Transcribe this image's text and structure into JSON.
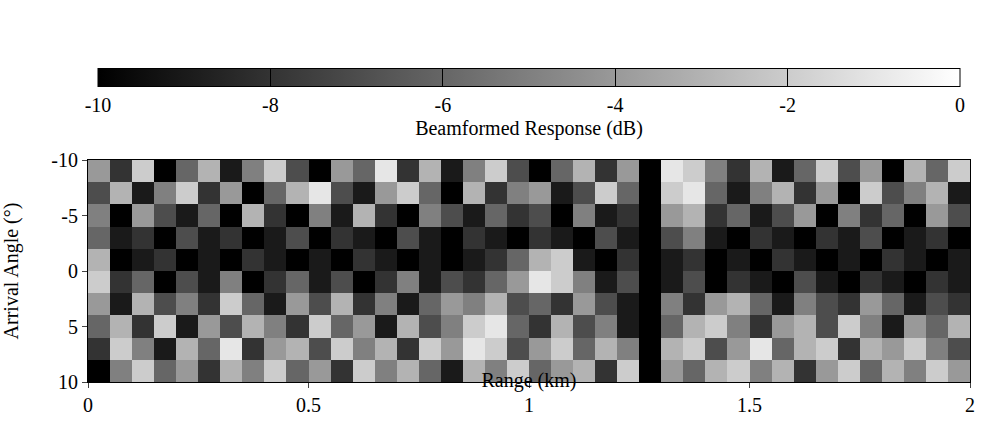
{
  "chart_data": {
    "type": "heatmap",
    "xlabel": "Range (km)",
    "ylabel": "Arrival Angle (°)",
    "xlim": [
      0,
      2
    ],
    "xticks": [
      0,
      0.5,
      1,
      1.5,
      2
    ],
    "ylim": [
      10,
      -10
    ],
    "yticks": [
      -10,
      -5,
      0,
      5,
      10
    ],
    "x": [
      0.025,
      0.075,
      0.125,
      0.175,
      0.225,
      0.275,
      0.325,
      0.375,
      0.425,
      0.475,
      0.525,
      0.575,
      0.625,
      0.675,
      0.725,
      0.775,
      0.825,
      0.875,
      0.925,
      0.975,
      1.025,
      1.075,
      1.125,
      1.175,
      1.225,
      1.275,
      1.325,
      1.375,
      1.425,
      1.475,
      1.525,
      1.575,
      1.625,
      1.675,
      1.725,
      1.775,
      1.825,
      1.875,
      1.925,
      1.975
    ],
    "y": [
      -9,
      -7,
      -5,
      -3,
      -1,
      1,
      3,
      5,
      7,
      9
    ],
    "z": [
      [
        -4,
        -8,
        -2,
        -10,
        -6,
        -3,
        -9,
        -5,
        -2,
        -7,
        -10,
        -4,
        -6,
        -1,
        -8,
        -3,
        -9,
        -5,
        -2,
        -7,
        -10,
        -6,
        -3,
        -8,
        -4,
        -10,
        -1,
        -2,
        -5,
        -8,
        -3,
        -9,
        -6,
        -2,
        -7,
        -4,
        -10,
        -3,
        -6,
        -2
      ],
      [
        -7,
        -3,
        -9,
        -5,
        -2,
        -8,
        -4,
        -10,
        -6,
        -3,
        -1,
        -7,
        -9,
        -4,
        -2,
        -6,
        -10,
        -3,
        -8,
        -5,
        -4,
        -9,
        -7,
        -2,
        -6,
        -10,
        -2,
        -1,
        -6,
        -9,
        -5,
        -3,
        -8,
        -4,
        -10,
        -2,
        -7,
        -5,
        -3,
        -9
      ],
      [
        -5,
        -10,
        -4,
        -7,
        -9,
        -6,
        -10,
        -3,
        -8,
        -10,
        -5,
        -9,
        -3,
        -8,
        -10,
        -5,
        -7,
        -9,
        -6,
        -8,
        -7,
        -10,
        -5,
        -9,
        -8,
        -10,
        -4,
        -3,
        -8,
        -6,
        -9,
        -7,
        -4,
        -10,
        -5,
        -8,
        -6,
        -10,
        -4,
        -7
      ],
      [
        -6,
        -9,
        -8,
        -10,
        -7,
        -9,
        -8,
        -10,
        -9,
        -7,
        -10,
        -8,
        -9,
        -10,
        -7,
        -9,
        -10,
        -8,
        -9,
        -10,
        -8,
        -9,
        -10,
        -7,
        -9,
        -10,
        -7,
        -5,
        -9,
        -10,
        -8,
        -9,
        -10,
        -8,
        -9,
        -7,
        -10,
        -9,
        -8,
        -10
      ],
      [
        -3,
        -10,
        -9,
        -8,
        -10,
        -9,
        -10,
        -8,
        -9,
        -10,
        -9,
        -10,
        -8,
        -9,
        -10,
        -9,
        -10,
        -9,
        -8,
        -6,
        -3,
        -2,
        -9,
        -10,
        -8,
        -10,
        -9,
        -8,
        -10,
        -9,
        -10,
        -8,
        -9,
        -10,
        -9,
        -10,
        -8,
        -9,
        -10,
        -9
      ],
      [
        -2,
        -8,
        -6,
        -10,
        -7,
        -9,
        -5,
        -10,
        -8,
        -6,
        -9,
        -7,
        -10,
        -8,
        -5,
        -9,
        -7,
        -8,
        -6,
        -4,
        -1,
        -2,
        -5,
        -9,
        -7,
        -10,
        -9,
        -7,
        -10,
        -8,
        -9,
        -10,
        -7,
        -9,
        -10,
        -8,
        -9,
        -10,
        -8,
        -9
      ],
      [
        -4,
        -9,
        -3,
        -7,
        -5,
        -8,
        -2,
        -6,
        -9,
        -4,
        -7,
        -3,
        -8,
        -5,
        -9,
        -6,
        -4,
        -5,
        -3,
        -7,
        -6,
        -8,
        -4,
        -7,
        -9,
        -10,
        -5,
        -8,
        -4,
        -3,
        -6,
        -9,
        -5,
        -7,
        -8,
        -4,
        -6,
        -9,
        -7,
        -8
      ],
      [
        -6,
        -3,
        -8,
        -2,
        -9,
        -4,
        -7,
        -3,
        -5,
        -8,
        -2,
        -6,
        -4,
        -9,
        -3,
        -7,
        -5,
        -2,
        -1,
        -6,
        -8,
        -3,
        -7,
        -5,
        -9,
        -10,
        -6,
        -3,
        -2,
        -5,
        -8,
        -4,
        -3,
        -7,
        -2,
        -5,
        -9,
        -4,
        -6,
        -3
      ],
      [
        -8,
        -2,
        -5,
        -9,
        -3,
        -6,
        -1,
        -8,
        -4,
        -3,
        -7,
        -2,
        -5,
        -3,
        -8,
        -2,
        -4,
        -1,
        -2,
        -7,
        -4,
        -2,
        -6,
        -3,
        -5,
        -10,
        -3,
        -2,
        -7,
        -4,
        -1,
        -6,
        -3,
        -2,
        -8,
        -3,
        -4,
        -2,
        -5,
        -7
      ],
      [
        -10,
        -5,
        -2,
        -6,
        -4,
        -8,
        -3,
        -5,
        -2,
        -6,
        -4,
        -8,
        -2,
        -5,
        -3,
        -6,
        -9,
        -3,
        -5,
        -2,
        -6,
        -4,
        -3,
        -8,
        -2,
        -10,
        -4,
        -6,
        -3,
        -2,
        -5,
        -3,
        -8,
        -4,
        -2,
        -6,
        -3,
        -5,
        -2,
        -4
      ]
    ],
    "colorbar": {
      "label": "Beamformed Response (dB)",
      "range": [
        -10,
        0
      ],
      "ticks": [
        -10,
        -8,
        -6,
        -4,
        -2,
        0
      ]
    }
  }
}
